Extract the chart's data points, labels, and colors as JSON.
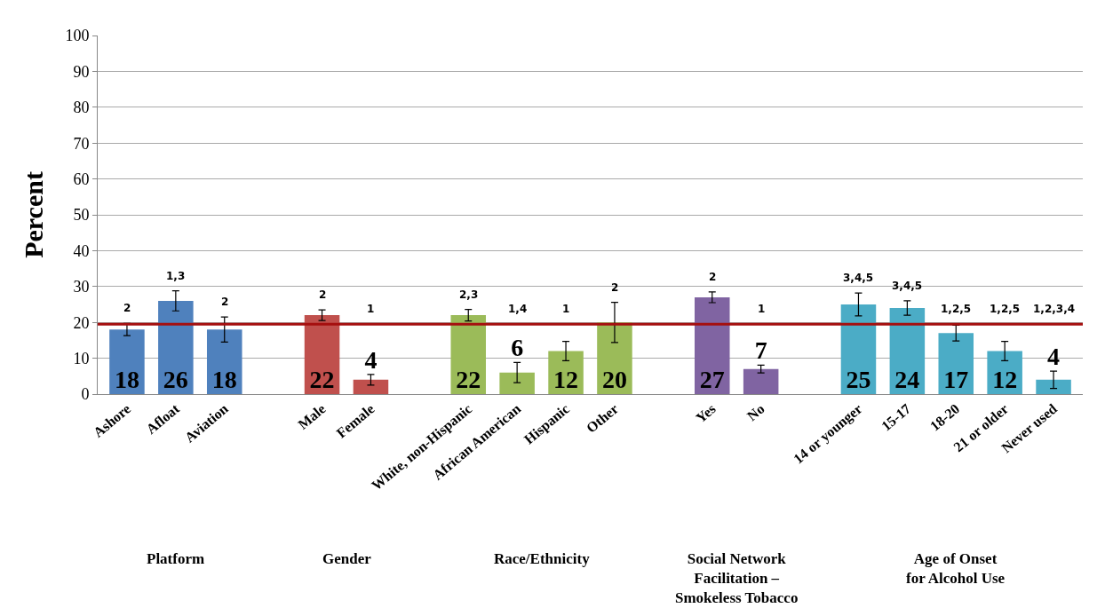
{
  "chart_data": {
    "type": "bar",
    "ylabel": "Percent",
    "categories": [
      "Ashore",
      "Afloat",
      "Aviation",
      null,
      "Male",
      "Female",
      null,
      "White, non-Hispanic",
      "African American",
      "Hispanic",
      "Other",
      null,
      "Yes",
      "No",
      null,
      "14 or younger",
      "15-17",
      "18-20",
      "21 or older",
      "Never used"
    ],
    "values": [
      18,
      26,
      18,
      null,
      22,
      4,
      null,
      22,
      6,
      12,
      20,
      null,
      27,
      7,
      null,
      25,
      24,
      17,
      12,
      4
    ],
    "colors": [
      "#4f81bd",
      "#4f81bd",
      "#4f81bd",
      null,
      "#c0504d",
      "#c0504d",
      null,
      "#9bbb59",
      "#9bbb59",
      "#9bbb59",
      "#9bbb59",
      null,
      "#8064a2",
      "#8064a2",
      null,
      "#4bacc6",
      "#4bacc6",
      "#4bacc6",
      "#4bacc6",
      "#4bacc6"
    ],
    "errors": [
      1.7,
      2.8,
      3.5,
      null,
      1.5,
      1.5,
      null,
      1.6,
      2.8,
      2.7,
      5.6,
      null,
      1.5,
      1.1,
      null,
      3.2,
      2,
      2.2,
      2.7,
      2.4
    ],
    "data_labels": true,
    "ylim": [
      0,
      100
    ],
    "yticks": [
      0,
      10,
      20,
      30,
      40,
      50,
      60,
      70,
      80,
      90,
      100
    ],
    "grid": "y",
    "ref_lines": [
      {
        "axis": "y",
        "value": 19.5,
        "color": "#a50f0f"
      }
    ],
    "annotations": [
      "Platform",
      "Gender",
      "Race/Ethnicity",
      "Social Network\nFacilitation –\nSmokeless Tobacco",
      "Age of Onset\nfor Alcohol Use",
      "2",
      "1,3",
      "2",
      "2",
      "1",
      "2,3",
      "1,4",
      "1",
      "2",
      "2",
      "1",
      "3,4,5",
      "3,4,5",
      "1,2,5",
      "1,2,5",
      "1,2,3,4"
    ]
  }
}
